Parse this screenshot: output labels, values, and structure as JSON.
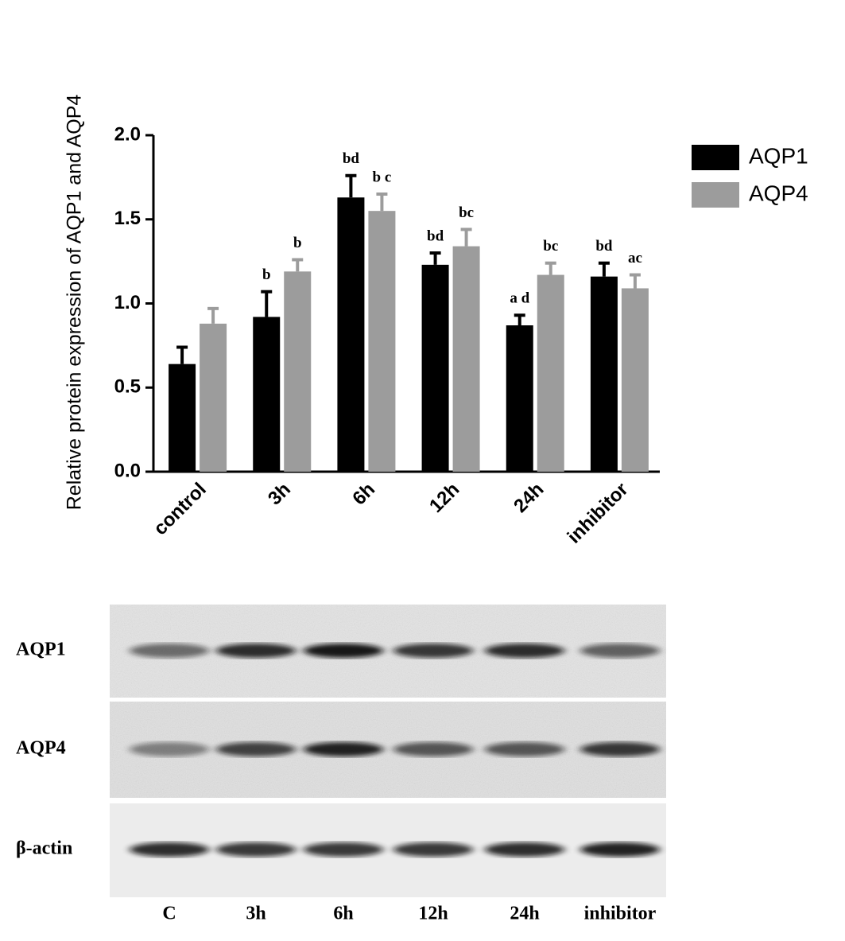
{
  "chart_data": {
    "type": "bar",
    "y_label": "Relative protein expression of AQP1 and AQP4",
    "categories": [
      "control",
      "3h",
      "6h",
      "12h",
      "24h",
      "inhibitor"
    ],
    "series": [
      {
        "name": "AQP1",
        "color": "#000000",
        "values": [
          0.64,
          0.92,
          1.63,
          1.23,
          0.87,
          1.16
        ],
        "errors": [
          0.1,
          0.15,
          0.13,
          0.07,
          0.06,
          0.08
        ],
        "annotations": [
          null,
          "b",
          "bd",
          "bd",
          "a d",
          "bd"
        ]
      },
      {
        "name": "AQP4",
        "color": "#9c9c9c",
        "values": [
          0.88,
          1.19,
          1.55,
          1.34,
          1.17,
          1.09
        ],
        "errors": [
          0.09,
          0.07,
          0.1,
          0.1,
          0.07,
          0.08
        ],
        "annotations": [
          null,
          "b",
          "b c",
          "bc",
          "bc",
          "ac"
        ]
      }
    ],
    "ylim": [
      0,
      2
    ],
    "yticks": [
      {
        "value": 0,
        "label": "0.0"
      },
      0.5,
      {
        "value": 1,
        "label": "1.0"
      },
      1.5,
      {
        "value": 2,
        "label": "2.0"
      }
    ],
    "legend": "upper right"
  },
  "blot": {
    "rows": [
      "AQP1",
      "AQP4",
      "β-actin"
    ],
    "lanes": [
      "C",
      "3h",
      "6h",
      "12h",
      "24h",
      "inhibitor"
    ]
  }
}
